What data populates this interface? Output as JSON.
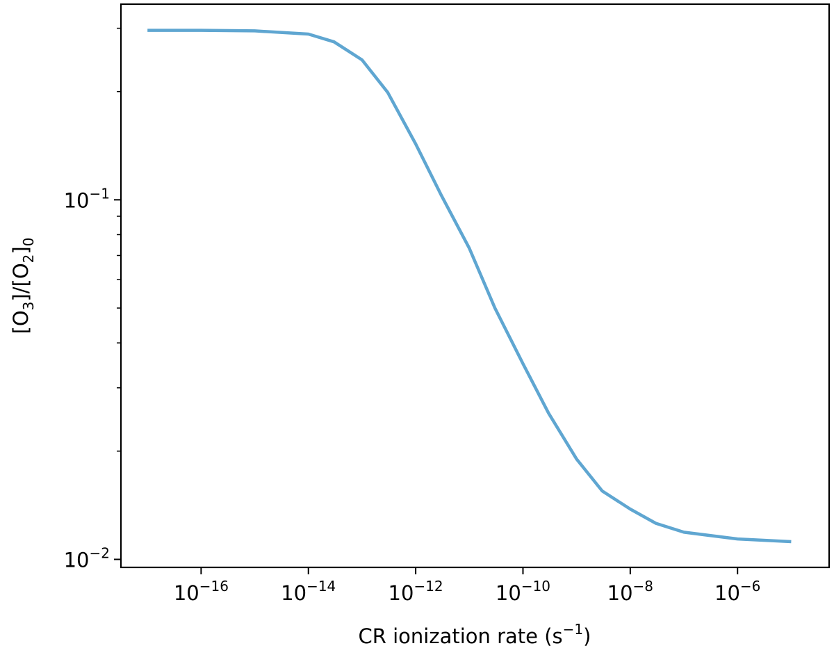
{
  "chart_data": {
    "type": "line",
    "title": "",
    "xlabel": "CR ionization rate (s⁻¹)",
    "xlabel_parts": {
      "main": "CR ionization rate (s",
      "sup": "−1",
      "end": ")"
    },
    "ylabel": "[O3]/[O2]0",
    "ylabel_parts": {
      "a": "[O",
      "a_sub": "3",
      "b": "]/[O",
      "b_sub": "2",
      "c": "]",
      "c_sub": "0"
    },
    "xscale": "log",
    "yscale": "log",
    "xlim": [
      3.2e-18,
      5.1e-05
    ],
    "ylim": [
      0.0095,
      0.35
    ],
    "grid": false,
    "legend": null,
    "x_ticks": [
      {
        "value": 1e-16,
        "base": "10",
        "exp": "−16"
      },
      {
        "value": 1e-14,
        "base": "10",
        "exp": "−14"
      },
      {
        "value": 1e-12,
        "base": "10",
        "exp": "−12"
      },
      {
        "value": 1e-10,
        "base": "10",
        "exp": "−10"
      },
      {
        "value": 1e-08,
        "base": "10",
        "exp": "−8"
      },
      {
        "value": 1e-06,
        "base": "10",
        "exp": "−6"
      }
    ],
    "y_ticks": [
      {
        "value": 0.1,
        "base": "10",
        "exp": "−1"
      },
      {
        "value": 0.01,
        "base": "10",
        "exp": "−2"
      }
    ],
    "y_minor_ticks": [
      0.02,
      0.03,
      0.04,
      0.05,
      0.06,
      0.07,
      0.08,
      0.09,
      0.2,
      0.3
    ],
    "series": [
      {
        "name": "[O3]/[O2]0",
        "color": "#5fa6d1",
        "x": [
          1e-17,
          1e-16,
          1e-15,
          1e-14,
          3e-14,
          1e-13,
          3e-13,
          1e-12,
          3e-12,
          1e-11,
          3e-11,
          1e-10,
          3e-10,
          1e-09,
          3e-09,
          1e-08,
          3e-08,
          1e-07,
          1e-06,
          1e-05
        ],
        "y": [
          0.296,
          0.296,
          0.295,
          0.289,
          0.275,
          0.245,
          0.199,
          0.143,
          0.103,
          0.0733,
          0.05,
          0.035,
          0.0255,
          0.019,
          0.0155,
          0.0138,
          0.0126,
          0.0119,
          0.0114,
          0.0112
        ]
      }
    ]
  }
}
